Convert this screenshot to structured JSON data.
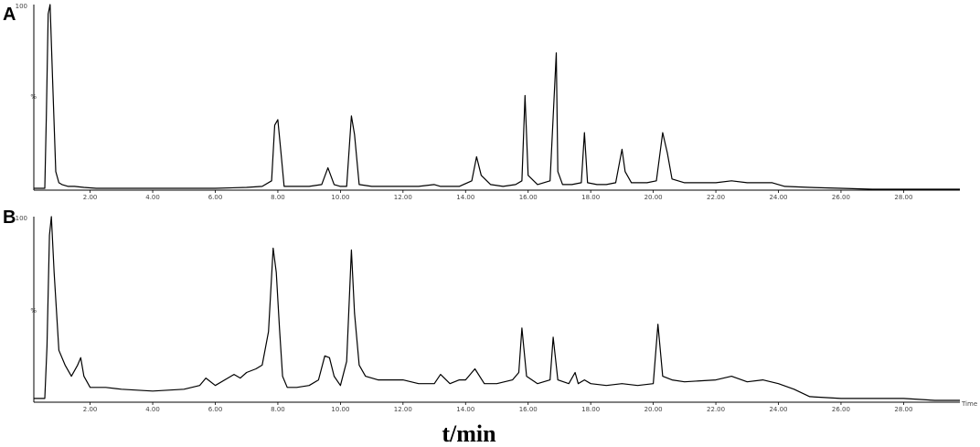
{
  "figure": {
    "xlabel": "t/min",
    "axis_unit": "Time"
  },
  "chart_data": [
    {
      "type": "line",
      "panel_label": "A",
      "xlabel": "t/min",
      "x_ticks": [
        "2.00",
        "4.00",
        "6.00",
        "8.00",
        "10.00",
        "12.00",
        "14.00",
        "16.00",
        "18.00",
        "20.00",
        "22.00",
        "24.00",
        "26.00",
        "28.00"
      ],
      "y_ticks": [
        "100",
        "%"
      ],
      "xlim": [
        0.2,
        29.8
      ],
      "ylim": [
        0,
        100
      ],
      "series": [
        {
          "x": [
            0.2,
            0.55,
            0.6,
            0.66,
            0.72,
            0.8,
            0.9,
            1.0,
            1.1,
            1.3,
            1.5,
            1.8,
            2.2,
            3.0,
            4.0,
            5.0,
            6.0,
            7.0,
            7.5,
            7.8,
            7.9,
            8.0,
            8.1,
            8.2,
            8.5,
            9.0,
            9.4,
            9.6,
            9.8,
            10.0,
            10.2,
            10.35,
            10.45,
            10.6,
            11.0,
            11.5,
            12.0,
            12.5,
            13.0,
            13.2,
            13.4,
            13.8,
            14.2,
            14.35,
            14.5,
            14.8,
            15.2,
            15.6,
            15.8,
            15.9,
            16.0,
            16.3,
            16.7,
            16.9,
            16.95,
            17.1,
            17.4,
            17.7,
            17.8,
            17.9,
            18.2,
            18.5,
            18.8,
            19.0,
            19.1,
            19.3,
            19.8,
            20.1,
            20.3,
            20.45,
            20.6,
            21.0,
            22.0,
            22.5,
            23.0,
            23.8,
            24.2,
            25.0,
            26.0,
            27.0,
            28.0,
            29.0,
            29.8
          ],
          "y": [
            1,
            1,
            40,
            95,
            100,
            60,
            10,
            4,
            3,
            2,
            2,
            1.5,
            1,
            1,
            1,
            1,
            1,
            1.5,
            2,
            5,
            35,
            38,
            20,
            2,
            2,
            2,
            3,
            12,
            3,
            2,
            2,
            40,
            30,
            3,
            2,
            2,
            2,
            2,
            3,
            2,
            2,
            2,
            5,
            18,
            8,
            3,
            2,
            3,
            5,
            51,
            8,
            3,
            5,
            74,
            10,
            3,
            3,
            4,
            31,
            4,
            3,
            3,
            4,
            22,
            10,
            4,
            4,
            5,
            31,
            20,
            6,
            4,
            4,
            5,
            4,
            4,
            2,
            1.5,
            1,
            0.5,
            0.5,
            0.5,
            0.5
          ]
        }
      ]
    },
    {
      "type": "line",
      "panel_label": "B",
      "xlabel": "t/min",
      "x_ticks": [
        "2.00",
        "4.00",
        "6.00",
        "8.00",
        "10.00",
        "12.00",
        "14.00",
        "16.00",
        "18.00",
        "20.00",
        "22.00",
        "24.00",
        "26.00",
        "28.00"
      ],
      "y_ticks": [
        "100",
        "%"
      ],
      "xlim": [
        0.2,
        29.8
      ],
      "ylim": [
        0,
        100
      ],
      "series": [
        {
          "x": [
            0.2,
            0.55,
            0.62,
            0.7,
            0.76,
            0.85,
            1.0,
            1.2,
            1.4,
            1.6,
            1.7,
            1.8,
            2.0,
            2.5,
            3.0,
            4.0,
            5.0,
            5.5,
            5.7,
            6.0,
            6.4,
            6.6,
            6.8,
            7.0,
            7.3,
            7.5,
            7.7,
            7.85,
            7.95,
            8.05,
            8.15,
            8.3,
            8.6,
            9.0,
            9.3,
            9.5,
            9.65,
            9.8,
            10.0,
            10.2,
            10.35,
            10.45,
            10.6,
            10.8,
            11.2,
            12.0,
            12.5,
            13.0,
            13.2,
            13.5,
            13.8,
            14.0,
            14.3,
            14.6,
            15.0,
            15.5,
            15.7,
            15.8,
            15.95,
            16.3,
            16.7,
            16.8,
            16.95,
            17.3,
            17.5,
            17.6,
            17.8,
            18.0,
            18.5,
            19.0,
            19.5,
            20.0,
            20.15,
            20.3,
            20.6,
            21.0,
            22.0,
            22.5,
            23.0,
            23.5,
            24.0,
            24.5,
            25.0,
            26.0,
            27.0,
            28.0,
            29.0,
            29.8
          ],
          "y": [
            2,
            2,
            30,
            90,
            100,
            70,
            28,
            20,
            14,
            20,
            24,
            14,
            8,
            8,
            7,
            6,
            7,
            9,
            13,
            9,
            13,
            15,
            13,
            16,
            18,
            20,
            38,
            83,
            70,
            40,
            14,
            8,
            8,
            9,
            12,
            25,
            24,
            14,
            9,
            22,
            82,
            48,
            20,
            14,
            12,
            12,
            10,
            10,
            15,
            10,
            12,
            12,
            18,
            10,
            10,
            12,
            16,
            40,
            14,
            10,
            12,
            35,
            12,
            10,
            16,
            10,
            12,
            10,
            9,
            10,
            9,
            10,
            42,
            14,
            12,
            11,
            12,
            14,
            11,
            12,
            10,
            7,
            3,
            2,
            2,
            2,
            1,
            1
          ]
        }
      ]
    }
  ]
}
